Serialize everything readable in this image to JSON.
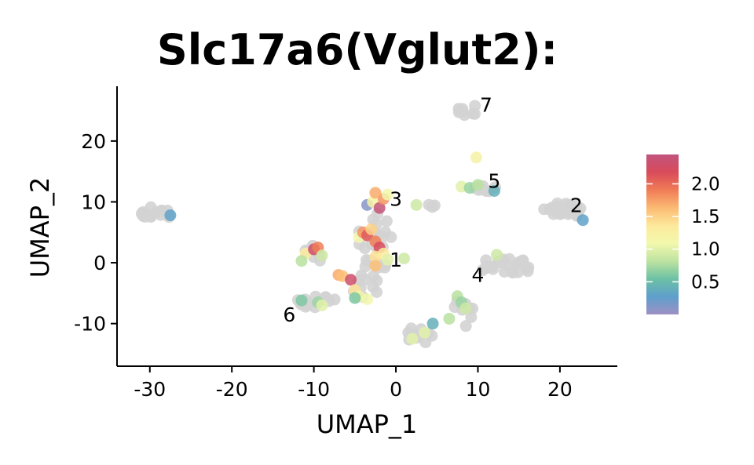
{
  "chart_data": {
    "type": "scatter",
    "title": "Slc17a6(Vglut2):",
    "xlabel": "UMAP_1",
    "ylabel": "UMAP_2",
    "xlim": [
      -34,
      27
    ],
    "ylim": [
      -17,
      29
    ],
    "xticks": [
      -30,
      -20,
      -10,
      0,
      10,
      20
    ],
    "yticks": [
      -10,
      0,
      10,
      20
    ],
    "grid": false,
    "legend": "right",
    "zero_color": "#d3d3d3",
    "colorbar": {
      "min": 0,
      "max": 2.45,
      "ticks": [
        0.5,
        1.0,
        1.5,
        2.0
      ],
      "tick_labels": [
        "0.5",
        "1.0",
        "1.5",
        "2.0"
      ],
      "colors": [
        "#9e91c4",
        "#5e9fcc",
        "#6cc1a4",
        "#bde3a0",
        "#f2f8ad",
        "#fde99b",
        "#fbba73",
        "#f07c56",
        "#d94b5a",
        "#c1547e"
      ]
    },
    "cluster_labels": [
      {
        "label": "1",
        "x": 0,
        "y": 0.5
      },
      {
        "label": "2",
        "x": 22,
        "y": 9.5
      },
      {
        "label": "3",
        "x": 0,
        "y": 10.5
      },
      {
        "label": "4",
        "x": 10,
        "y": -2
      },
      {
        "label": "5",
        "x": 12,
        "y": 13.5
      },
      {
        "label": "6",
        "x": -13,
        "y": -8.5
      },
      {
        "label": "7",
        "x": 11,
        "y": 26
      }
    ],
    "grey_groups": [
      {
        "cx": -29.5,
        "cy": 8,
        "rx": 2,
        "ry": 1.3,
        "n": 14
      },
      {
        "cx": -10,
        "cy": -6.5,
        "rx": 3,
        "ry": 1,
        "n": 16
      },
      {
        "cx": -10,
        "cy": 1.5,
        "rx": 1.2,
        "ry": 1.5,
        "n": 8
      },
      {
        "cx": -4,
        "cy": -4,
        "rx": 2,
        "ry": 2,
        "n": 10
      },
      {
        "cx": -2.5,
        "cy": 4,
        "rx": 2.2,
        "ry": 4.5,
        "n": 22
      },
      {
        "cx": -2.5,
        "cy": -1,
        "rx": 1.5,
        "ry": 1.5,
        "n": 8
      },
      {
        "cx": 8.8,
        "cy": 25,
        "rx": 1.2,
        "ry": 1.2,
        "n": 9
      },
      {
        "cx": 11,
        "cy": 12.5,
        "rx": 1.5,
        "ry": 0.8,
        "n": 8
      },
      {
        "cx": 20.5,
        "cy": 8.5,
        "rx": 2.5,
        "ry": 1.4,
        "n": 26
      },
      {
        "cx": 13.5,
        "cy": -0.5,
        "rx": 3.5,
        "ry": 1.4,
        "n": 24
      },
      {
        "cx": 8.5,
        "cy": -8,
        "rx": 1.5,
        "ry": 2.5,
        "n": 8
      },
      {
        "cx": 3,
        "cy": -12,
        "rx": 2,
        "ry": 1.5,
        "n": 14
      },
      {
        "cx": 4,
        "cy": 9.5,
        "rx": 0.8,
        "ry": 0.4,
        "n": 3
      }
    ],
    "points": [
      {
        "x": -27.5,
        "y": 7.8,
        "v": 0.3
      },
      {
        "x": -11.5,
        "y": -6.2,
        "v": 0.6
      },
      {
        "x": -9.5,
        "y": -6.5,
        "v": 0.7
      },
      {
        "x": -9,
        "y": -7,
        "v": 1.0
      },
      {
        "x": -11,
        "y": 1.5,
        "v": 1.3
      },
      {
        "x": -11.5,
        "y": 0.3,
        "v": 0.8
      },
      {
        "x": -10,
        "y": 2.2,
        "v": 2.3
      },
      {
        "x": -9.5,
        "y": 2.5,
        "v": 1.9
      },
      {
        "x": -9,
        "y": 1.2,
        "v": 0.9
      },
      {
        "x": -7,
        "y": -2,
        "v": 1.7
      },
      {
        "x": -6.5,
        "y": -2.2,
        "v": 1.6
      },
      {
        "x": -5.5,
        "y": -2.8,
        "v": 2.3
      },
      {
        "x": -5,
        "y": -4.5,
        "v": 1.4
      },
      {
        "x": -4.5,
        "y": -5.5,
        "v": 1.2
      },
      {
        "x": -5,
        "y": -5.8,
        "v": 0.6
      },
      {
        "x": -3.5,
        "y": -6,
        "v": 1.1
      },
      {
        "x": -4.5,
        "y": 4.2,
        "v": 1.1
      },
      {
        "x": -4,
        "y": 5,
        "v": 1.8
      },
      {
        "x": -3.5,
        "y": 4.5,
        "v": 2.1
      },
      {
        "x": -3,
        "y": 5.5,
        "v": 1.5
      },
      {
        "x": -2.5,
        "y": 3.5,
        "v": 1.9
      },
      {
        "x": -2,
        "y": 2.5,
        "v": 2.2
      },
      {
        "x": -2.5,
        "y": 1,
        "v": 1.4
      },
      {
        "x": -1.5,
        "y": 1.5,
        "v": 1.3
      },
      {
        "x": -1,
        "y": 0.5,
        "v": 1.0
      },
      {
        "x": -2.5,
        "y": -0.5,
        "v": 1.6
      },
      {
        "x": -3.5,
        "y": 9.5,
        "v": 0.1
      },
      {
        "x": -2.8,
        "y": 10,
        "v": 1.2
      },
      {
        "x": -2,
        "y": 9,
        "v": 2.4
      },
      {
        "x": -1.5,
        "y": 10.5,
        "v": 1.8
      },
      {
        "x": -1,
        "y": 11.2,
        "v": 1.1
      },
      {
        "x": -2.5,
        "y": 11.5,
        "v": 1.7
      },
      {
        "x": 2.5,
        "y": 9.5,
        "v": 0.9
      },
      {
        "x": 8,
        "y": 12.5,
        "v": 1.0
      },
      {
        "x": 9,
        "y": 12.3,
        "v": 0.7
      },
      {
        "x": 10,
        "y": 12.8,
        "v": 0.8
      },
      {
        "x": 12,
        "y": 11.8,
        "v": 0.4
      },
      {
        "x": 9.8,
        "y": 17.3,
        "v": 1.2
      },
      {
        "x": 12.3,
        "y": 1.3,
        "v": 0.9
      },
      {
        "x": 22.8,
        "y": 7,
        "v": 0.3
      },
      {
        "x": 7.5,
        "y": -5.5,
        "v": 0.8
      },
      {
        "x": 8,
        "y": -6.5,
        "v": 0.7
      },
      {
        "x": 8.5,
        "y": -7.5,
        "v": 0.9
      },
      {
        "x": 6.5,
        "y": -9.2,
        "v": 0.8
      },
      {
        "x": 4.5,
        "y": -10,
        "v": 0.4
      },
      {
        "x": 3.5,
        "y": -11.5,
        "v": 1.0
      },
      {
        "x": 2,
        "y": -12.5,
        "v": 1.0
      },
      {
        "x": 1,
        "y": 0.7,
        "v": 0.9
      }
    ]
  }
}
